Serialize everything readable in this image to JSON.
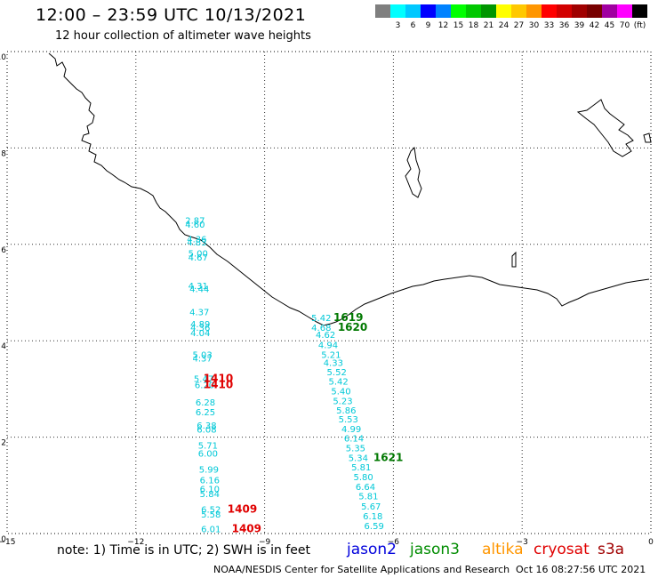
{
  "header": {
    "title": "12:00 – 23:59 UTC 10/13/2021",
    "subtitle": "12 hour collection of altimeter wave heights"
  },
  "scale": {
    "colors": [
      "#7f7f7f",
      "#00ffff",
      "#00c8ff",
      "#0000ff",
      "#0082ff",
      "#00ff00",
      "#00c800",
      "#009600",
      "#ffff00",
      "#ffc800",
      "#ff9600",
      "#ff0000",
      "#d20000",
      "#a00000",
      "#780000",
      "#a000a0",
      "#ff00ff",
      "#000000"
    ],
    "labels": [
      "",
      "3",
      "6",
      "9",
      "12",
      "15",
      "18",
      "21",
      "24",
      "27",
      "30",
      "33",
      "36",
      "39",
      "42",
      "45",
      "70",
      "(ft)"
    ]
  },
  "axes": {
    "x_ticks": [
      "−15",
      "−12",
      "−9",
      "−6",
      "−3",
      "0"
    ],
    "y_ticks": [
      "0",
      "2",
      "4",
      "6",
      "8",
      "10"
    ]
  },
  "map_data": {
    "xlim": [
      -15,
      0
    ],
    "ylim": [
      0,
      10
    ],
    "tracks": [
      {
        "satellite": "jason2",
        "color": "#00c8d7",
        "points": [
          {
            "x": -10.62,
            "y": 6.5,
            "value": "2.87"
          },
          {
            "x": -10.62,
            "y": 6.42,
            "value": "4.60"
          },
          {
            "x": -10.58,
            "y": 6.12,
            "value": "4.36"
          },
          {
            "x": -10.58,
            "y": 6.05,
            "value": "4.83"
          },
          {
            "x": -10.55,
            "y": 5.82,
            "value": "5.00"
          },
          {
            "x": -10.55,
            "y": 5.74,
            "value": "4.67"
          },
          {
            "x": -10.55,
            "y": 5.15,
            "value": "4.31"
          },
          {
            "x": -10.52,
            "y": 5.08,
            "value": "4.44"
          },
          {
            "x": -10.52,
            "y": 4.6,
            "value": "4.37"
          },
          {
            "x": -10.5,
            "y": 4.35,
            "value": "4.89"
          },
          {
            "x": -10.5,
            "y": 4.28,
            "value": "4.36"
          },
          {
            "x": -10.5,
            "y": 4.17,
            "value": "4.04"
          },
          {
            "x": -10.45,
            "y": 3.72,
            "value": "5.03"
          },
          {
            "x": -10.45,
            "y": 3.64,
            "value": "4.37"
          },
          {
            "x": -10.42,
            "y": 3.22,
            "value": "5.47"
          },
          {
            "x": -10.4,
            "y": 3.09,
            "value": "6.20"
          },
          {
            "x": -10.38,
            "y": 2.73,
            "value": "6.28"
          },
          {
            "x": -10.38,
            "y": 2.53,
            "value": "6.25"
          },
          {
            "x": -10.35,
            "y": 2.25,
            "value": "6.38"
          },
          {
            "x": -10.35,
            "y": 2.17,
            "value": "6.08"
          },
          {
            "x": -10.32,
            "y": 1.84,
            "value": "5.71"
          },
          {
            "x": -10.32,
            "y": 1.67,
            "value": "6.00"
          },
          {
            "x": -10.3,
            "y": 1.34,
            "value": "5.99"
          },
          {
            "x": -10.28,
            "y": 1.12,
            "value": "6.16"
          },
          {
            "x": -10.28,
            "y": 0.93,
            "value": "6.10"
          },
          {
            "x": -10.28,
            "y": 0.83,
            "value": "5.84"
          },
          {
            "x": -10.25,
            "y": 0.51,
            "value": "6.52"
          },
          {
            "x": -10.25,
            "y": 0.41,
            "value": "5.58"
          },
          {
            "x": -10.25,
            "y": 0.1,
            "value": "6.01"
          },
          {
            "x": -7.68,
            "y": 4.48,
            "value": "5.42"
          },
          {
            "x": -7.68,
            "y": 4.28,
            "value": "4.68"
          },
          {
            "x": -7.58,
            "y": 4.13,
            "value": "4.62"
          },
          {
            "x": -7.52,
            "y": 3.92,
            "value": "4.94"
          },
          {
            "x": -7.45,
            "y": 3.72,
            "value": "5.21"
          },
          {
            "x": -7.4,
            "y": 3.55,
            "value": "4.33"
          },
          {
            "x": -7.32,
            "y": 3.36,
            "value": "5.52"
          },
          {
            "x": -7.28,
            "y": 3.16,
            "value": "5.42"
          },
          {
            "x": -7.22,
            "y": 2.96,
            "value": "5.40"
          },
          {
            "x": -7.18,
            "y": 2.76,
            "value": "5.23"
          },
          {
            "x": -7.1,
            "y": 2.56,
            "value": "5.86"
          },
          {
            "x": -7.05,
            "y": 2.38,
            "value": "5.53"
          },
          {
            "x": -6.98,
            "y": 2.18,
            "value": "4.99"
          },
          {
            "x": -6.92,
            "y": 1.98,
            "value": "6.14"
          },
          {
            "x": -6.88,
            "y": 1.78,
            "value": "5.35"
          },
          {
            "x": -6.82,
            "y": 1.58,
            "value": "5.34"
          },
          {
            "x": -6.75,
            "y": 1.38,
            "value": "5.81"
          },
          {
            "x": -6.7,
            "y": 1.18,
            "value": "5.80"
          },
          {
            "x": -6.65,
            "y": 0.98,
            "value": "6.64"
          },
          {
            "x": -6.58,
            "y": 0.78,
            "value": "5.81"
          },
          {
            "x": -6.52,
            "y": 0.57,
            "value": "5.67"
          },
          {
            "x": -6.48,
            "y": 0.37,
            "value": "6.18"
          },
          {
            "x": -6.45,
            "y": 0.17,
            "value": "6.59"
          }
        ]
      }
    ],
    "times": [
      {
        "x": -10.08,
        "y": 3.22,
        "label": "1410",
        "color": "#e00000"
      },
      {
        "x": -10.08,
        "y": 3.09,
        "label": "1410",
        "color": "#e00000"
      },
      {
        "x": -9.52,
        "y": 0.51,
        "label": "1409",
        "color": "#e00000"
      },
      {
        "x": -9.42,
        "y": 0.1,
        "label": "1409",
        "color": "#e00000"
      },
      {
        "x": -7.05,
        "y": 4.48,
        "label": "1619",
        "color": "#007800"
      },
      {
        "x": -6.95,
        "y": 4.28,
        "label": "1620",
        "color": "#007800"
      },
      {
        "x": -6.12,
        "y": 1.58,
        "label": "1621",
        "color": "#007800"
      }
    ]
  },
  "footer": {
    "note": "note: 1) Time is in UTC; 2) SWH is in feet",
    "satellites": [
      {
        "name": "jason2",
        "color": "#0000dc"
      },
      {
        "name": "jason3",
        "color": "#008c00"
      },
      {
        "name": "altika",
        "color": "#ff9600"
      },
      {
        "name": "cryosat",
        "color": "#e00000"
      },
      {
        "name": "s3a",
        "color": "#a00000"
      }
    ],
    "credit": "NOAA/NESDIS Center for Satellite Applications and Research",
    "timestamp": "Oct 16 08:27:56 UTC 2021"
  }
}
